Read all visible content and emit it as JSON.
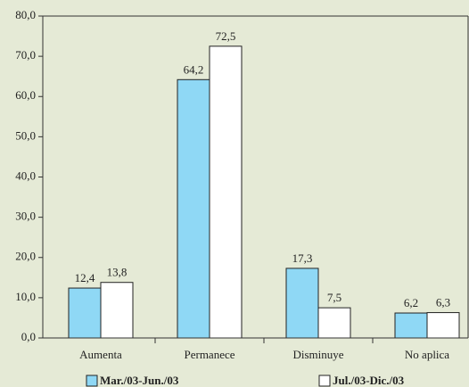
{
  "chart_data": {
    "type": "bar",
    "categories": [
      "Aumenta",
      "Permanece",
      "Disminuye",
      "No aplica"
    ],
    "series": [
      {
        "name": "Mar./03-Jun./03",
        "color": "#8fd8f5",
        "values": [
          12.4,
          64.2,
          17.3,
          6.2
        ],
        "value_labels": [
          "12,4",
          "64,2",
          "17,3",
          "6,2"
        ]
      },
      {
        "name": "Jul./03-Dic./03",
        "color": "#ffffff",
        "values": [
          13.8,
          72.5,
          7.5,
          6.3
        ],
        "value_labels": [
          "13,8",
          "72,5",
          "7,5",
          "6,3"
        ]
      }
    ],
    "ylim": [
      0,
      80
    ],
    "yticks": [
      {
        "value": 0,
        "label": "0,0"
      },
      {
        "value": 10,
        "label": "10,0"
      },
      {
        "value": 20,
        "label": "20,0"
      },
      {
        "value": 30,
        "label": "30,0"
      },
      {
        "value": 40,
        "label": "40,0"
      },
      {
        "value": 50,
        "label": "50,0"
      },
      {
        "value": 60,
        "label": "60,0"
      },
      {
        "value": 70,
        "label": "70,0"
      },
      {
        "value": 80,
        "label": "80,0"
      }
    ],
    "grid": false
  }
}
